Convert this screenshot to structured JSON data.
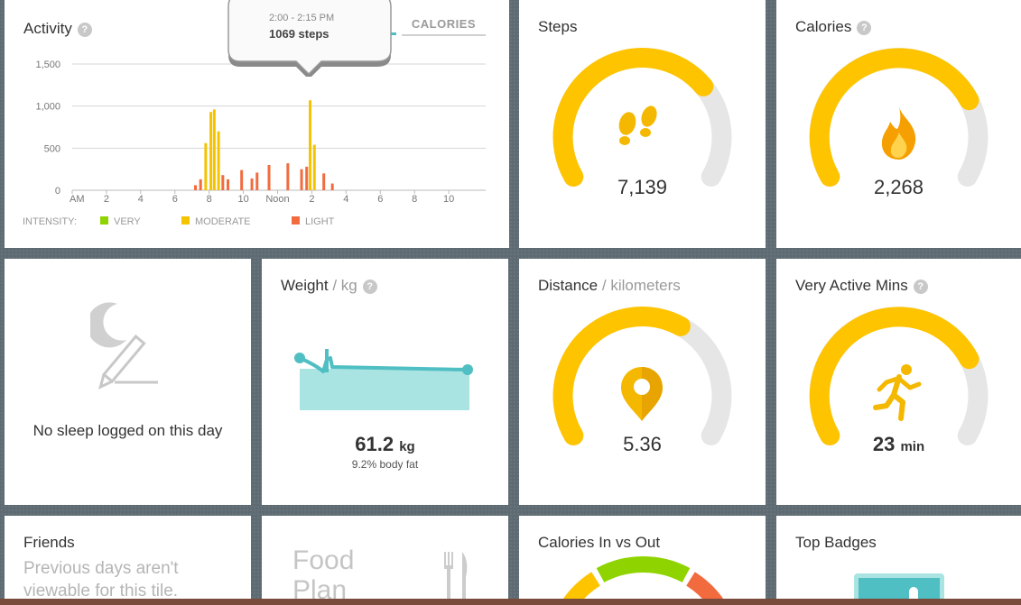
{
  "colors": {
    "gauge_fill": "#ffc400",
    "gauge_track": "#e6e6e6",
    "very": "#8fd400",
    "moderate": "#f5c400",
    "light": "#f26b3f",
    "weight_teal": "#4fbfc3",
    "weight_fill": "#a9e3e2"
  },
  "activity": {
    "title": "Activity",
    "help": "?",
    "tab_label": "CALORIES",
    "tooltip": {
      "time": "2:00 - 2:15 PM",
      "value": "1069 steps"
    },
    "intensity_label": "INTENSITY:",
    "legend": [
      {
        "name": "VERY",
        "color": "#8fd400"
      },
      {
        "name": "MODERATE",
        "color": "#f5c400"
      },
      {
        "name": "LIGHT",
        "color": "#f26b3f"
      }
    ]
  },
  "chart_data": {
    "type": "bar",
    "title": "Activity",
    "y_ticks": [
      "1,500",
      "1,000",
      "500",
      "0"
    ],
    "ylim": [
      0,
      1600
    ],
    "x_tick_labels": [
      "AM",
      "2",
      "4",
      "6",
      "8",
      "10",
      "Noon",
      "2",
      "4",
      "6",
      "8",
      "10"
    ],
    "series": [
      {
        "name": "MODERATE",
        "color": "#f5c400",
        "points": [
          {
            "t": 7.8,
            "v": 560
          },
          {
            "t": 8.1,
            "v": 930
          },
          {
            "t": 8.3,
            "v": 960
          },
          {
            "t": 8.55,
            "v": 700
          },
          {
            "t": 13.9,
            "v": 1069
          },
          {
            "t": 14.15,
            "v": 540
          }
        ]
      },
      {
        "name": "LIGHT",
        "color": "#f26b3f",
        "points": [
          {
            "t": 7.2,
            "v": 60
          },
          {
            "t": 7.5,
            "v": 130
          },
          {
            "t": 8.8,
            "v": 180
          },
          {
            "t": 9.1,
            "v": 130
          },
          {
            "t": 9.9,
            "v": 240
          },
          {
            "t": 10.5,
            "v": 140
          },
          {
            "t": 10.8,
            "v": 210
          },
          {
            "t": 11.5,
            "v": 300
          },
          {
            "t": 12.6,
            "v": 320
          },
          {
            "t": 13.4,
            "v": 250
          },
          {
            "t": 13.7,
            "v": 280
          },
          {
            "t": 14.7,
            "v": 200
          },
          {
            "t": 15.2,
            "v": 80
          }
        ]
      }
    ]
  },
  "steps": {
    "title": "Steps",
    "value": "7,139",
    "progress": 0.71
  },
  "calories": {
    "title": "Calories",
    "help": "?",
    "value": "2,268",
    "progress": 0.76
  },
  "sleep": {
    "message": "No sleep logged on this day"
  },
  "weight": {
    "title": "Weight",
    "unit_label": "/ kg",
    "help": "?",
    "value": "61.2",
    "unit": "kg",
    "body_fat": "9.2% body fat"
  },
  "distance": {
    "title": "Distance",
    "unit_label": "/ kilometers",
    "value": "5.36",
    "progress": 0.62
  },
  "very_active": {
    "title": "Very Active Mins",
    "help": "?",
    "value": "23",
    "unit": "min",
    "progress": 0.76
  },
  "friends": {
    "title": "Friends",
    "message": "Previous days aren't viewable for this tile."
  },
  "food_plan": {
    "title": "Food Plan"
  },
  "cal_in_out": {
    "title": "Calories In vs Out"
  },
  "top_badges": {
    "title": "Top Badges"
  }
}
